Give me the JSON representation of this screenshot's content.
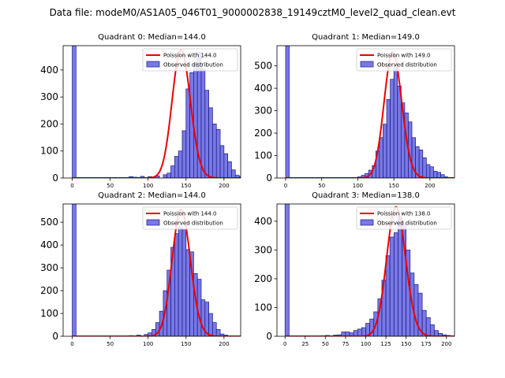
{
  "figure": {
    "suptitle": "Data file: modeM0/AS1A05_046T01_9000002838_19149cztM0_level2_quad_clean.evt"
  },
  "colors": {
    "bar_fill": "#7878e6",
    "bar_edge": "#1a1a80",
    "fit_line": "#ee0000"
  },
  "chart_data": [
    {
      "type": "bar",
      "title": "Quadrant 0: Median=144.0",
      "legend": [
        "Poission with 144.0",
        "Observed distribution"
      ],
      "legend_loc": "top-right",
      "xlim": [
        -12,
        222
      ],
      "ylim": [
        0,
        490
      ],
      "xticks": [
        0,
        50,
        100,
        150,
        200
      ],
      "yticks": [
        0,
        100,
        200,
        300,
        400
      ],
      "bin_width": 5,
      "bin_start": 0,
      "values": [
        490,
        0,
        0,
        0,
        0,
        0,
        0,
        0,
        0,
        0,
        0,
        0,
        0,
        0,
        0,
        5,
        3,
        0,
        6,
        0,
        5,
        0,
        8,
        0,
        12,
        18,
        45,
        80,
        100,
        175,
        330,
        390,
        425,
        465,
        405,
        325,
        260,
        200,
        180,
        120,
        90,
        60,
        30,
        10,
        5
      ],
      "poisson_lambda": 144.0,
      "poisson_scale": 475
    },
    {
      "type": "bar",
      "title": "Quadrant 1: Median=149.0",
      "legend": [
        "Poission with 149.0",
        "Observed distribution"
      ],
      "legend_loc": "top-right",
      "xlim": [
        -12,
        234
      ],
      "ylim": [
        0,
        590
      ],
      "xticks": [
        0,
        50,
        100,
        150,
        200
      ],
      "yticks": [
        0,
        100,
        200,
        300,
        400,
        500
      ],
      "bin_width": 5,
      "bin_start": 0,
      "values": [
        590,
        0,
        0,
        0,
        0,
        0,
        0,
        0,
        0,
        0,
        0,
        0,
        0,
        0,
        0,
        0,
        0,
        0,
        0,
        0,
        5,
        12,
        20,
        35,
        55,
        120,
        180,
        240,
        350,
        440,
        490,
        410,
        335,
        290,
        250,
        180,
        140,
        125,
        90,
        60,
        50,
        30,
        25,
        15,
        5
      ],
      "poisson_lambda": 149.0,
      "poisson_scale": 560
    },
    {
      "type": "bar",
      "title": "Quadrant 2: Median=144.0",
      "legend": [
        "Poission with 144.0",
        "Observed distribution"
      ],
      "legend_loc": "top-right",
      "xlim": [
        -12,
        222
      ],
      "ylim": [
        0,
        580
      ],
      "xticks": [
        0,
        50,
        100,
        150,
        200
      ],
      "yticks": [
        0,
        100,
        200,
        300,
        400,
        500
      ],
      "bin_width": 5,
      "bin_start": 0,
      "values": [
        580,
        0,
        0,
        0,
        0,
        0,
        0,
        0,
        0,
        0,
        0,
        0,
        0,
        0,
        0,
        3,
        0,
        5,
        0,
        8,
        15,
        30,
        60,
        110,
        200,
        290,
        390,
        450,
        480,
        470,
        380,
        370,
        275,
        250,
        160,
        150,
        100,
        60,
        30,
        10,
        5,
        0,
        0,
        0,
        0
      ],
      "poisson_lambda": 144.0,
      "poisson_scale": 555
    },
    {
      "type": "bar",
      "title": "Quadrant 3: Median=138.0",
      "legend": [
        "Poission with 138.0",
        "Observed distribution"
      ],
      "legend_loc": "top-right",
      "xlim": [
        -10,
        210
      ],
      "ylim": [
        0,
        460
      ],
      "xticks": [
        0,
        25,
        50,
        75,
        100,
        125,
        150,
        175,
        200
      ],
      "yticks": [
        0,
        100,
        200,
        300,
        400
      ],
      "bin_width": 5,
      "bin_start": 0,
      "values": [
        460,
        0,
        0,
        0,
        0,
        0,
        0,
        0,
        0,
        2,
        3,
        0,
        4,
        5,
        15,
        15,
        12,
        20,
        25,
        30,
        45,
        60,
        85,
        130,
        195,
        280,
        345,
        360,
        415,
        390,
        300,
        220,
        180,
        150,
        90,
        65,
        40,
        20,
        10,
        5,
        3,
        0
      ],
      "poisson_lambda": 138.0,
      "poisson_scale": 450
    }
  ]
}
